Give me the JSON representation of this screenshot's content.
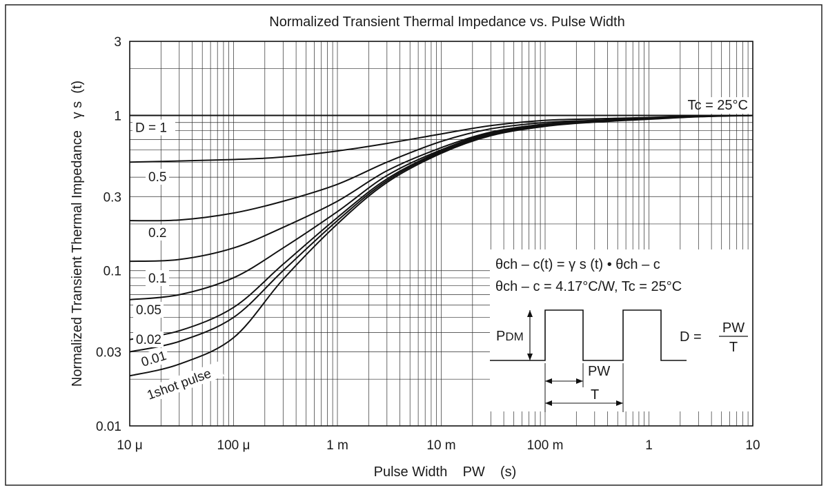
{
  "chart_data": {
    "type": "line",
    "title": "Normalized Transient Thermal Impedance vs. Pulse Width",
    "xlabel": "Pulse Width    PW    (s)",
    "ylabel": "Normalized Transient Thermal Impedance   γ s  (t)",
    "x_scale": "log",
    "y_scale": "log",
    "xlim": [
      1e-05,
      10
    ],
    "ylim": [
      0.01,
      3
    ],
    "grid": true,
    "x_ticks": [
      {
        "value": 1e-05,
        "label": "10 μ"
      },
      {
        "value": 0.0001,
        "label": "100 μ"
      },
      {
        "value": 0.001,
        "label": "1 m"
      },
      {
        "value": 0.01,
        "label": "10 m"
      },
      {
        "value": 0.1,
        "label": "100 m"
      },
      {
        "value": 1,
        "label": "1"
      },
      {
        "value": 10,
        "label": "10"
      }
    ],
    "y_ticks": [
      {
        "value": 0.01,
        "label": "0.01"
      },
      {
        "value": 0.03,
        "label": "0.03"
      },
      {
        "value": 0.1,
        "label": "0.1"
      },
      {
        "value": 0.3,
        "label": "0.3"
      },
      {
        "value": 1,
        "label": "1"
      },
      {
        "value": 3,
        "label": "3"
      }
    ],
    "series": [
      {
        "name": "D = 1",
        "x": [
          1e-05,
          10
        ],
        "y": [
          1,
          1
        ]
      },
      {
        "name": "0.5",
        "x": [
          1e-05,
          0.0001,
          0.0003,
          0.001,
          0.003,
          0.01,
          0.03,
          0.1,
          0.3,
          1,
          3,
          10
        ],
        "y": [
          0.5,
          0.52,
          0.54,
          0.59,
          0.66,
          0.76,
          0.86,
          0.93,
          0.95,
          0.97,
          0.99,
          1
        ]
      },
      {
        "name": "0.2",
        "x": [
          1e-05,
          3e-05,
          0.0001,
          0.0003,
          0.001,
          0.003,
          0.01,
          0.03,
          0.1,
          0.3,
          1,
          3,
          10
        ],
        "y": [
          0.21,
          0.212,
          0.235,
          0.28,
          0.36,
          0.5,
          0.68,
          0.82,
          0.9,
          0.93,
          0.96,
          0.99,
          1
        ]
      },
      {
        "name": "0.1",
        "x": [
          1e-05,
          3e-05,
          0.0001,
          0.0003,
          0.001,
          0.003,
          0.01,
          0.03,
          0.1,
          0.3,
          1,
          3,
          10
        ],
        "y": [
          0.115,
          0.118,
          0.14,
          0.19,
          0.28,
          0.44,
          0.62,
          0.78,
          0.88,
          0.92,
          0.955,
          0.985,
          1
        ]
      },
      {
        "name": "0.05",
        "x": [
          1e-05,
          3e-05,
          0.0001,
          0.0003,
          0.001,
          0.003,
          0.01,
          0.03,
          0.1,
          0.3,
          1,
          3,
          10
        ],
        "y": [
          0.065,
          0.07,
          0.09,
          0.14,
          0.24,
          0.41,
          0.6,
          0.77,
          0.87,
          0.915,
          0.95,
          0.985,
          1
        ]
      },
      {
        "name": "0.02",
        "x": [
          1e-05,
          3e-05,
          0.0001,
          0.0003,
          0.001,
          0.003,
          0.01,
          0.03,
          0.1,
          0.3,
          1,
          3,
          10
        ],
        "y": [
          0.036,
          0.041,
          0.058,
          0.11,
          0.22,
          0.39,
          0.59,
          0.76,
          0.86,
          0.91,
          0.95,
          0.985,
          1
        ]
      },
      {
        "name": "0.01",
        "x": [
          1e-05,
          3e-05,
          0.0001,
          0.0003,
          0.001,
          0.003,
          0.01,
          0.03,
          0.1,
          0.3,
          1,
          3,
          10
        ],
        "y": [
          0.03,
          0.035,
          0.05,
          0.1,
          0.21,
          0.38,
          0.58,
          0.75,
          0.86,
          0.91,
          0.95,
          0.985,
          1
        ]
      },
      {
        "name": "1shot pulse",
        "x": [
          1e-05,
          3e-05,
          0.0001,
          0.0003,
          0.001,
          0.003,
          0.01,
          0.03,
          0.1,
          0.3,
          1,
          3,
          10
        ],
        "y": [
          0.021,
          0.025,
          0.037,
          0.088,
          0.2,
          0.37,
          0.57,
          0.74,
          0.85,
          0.905,
          0.945,
          0.98,
          1
        ]
      }
    ],
    "annotations": {
      "tc": "Tc = 25°C",
      "eq1_a": "θ",
      "eq1_b": "ch – c(t) = ",
      "eq1_c": "γ",
      "eq1_d": " s (t) • ",
      "eq1_e": "θ",
      "eq1_f": "ch – c",
      "eq2_a": "θ",
      "eq2_b": "ch – c = 4.17°C/W, Tc = 25°C",
      "pdm_main": "P",
      "pdm_sub": "DM",
      "pw": "PW",
      "t": "T",
      "duty_lhs": "D = ",
      "duty_num": "PW",
      "duty_den": "T"
    }
  }
}
